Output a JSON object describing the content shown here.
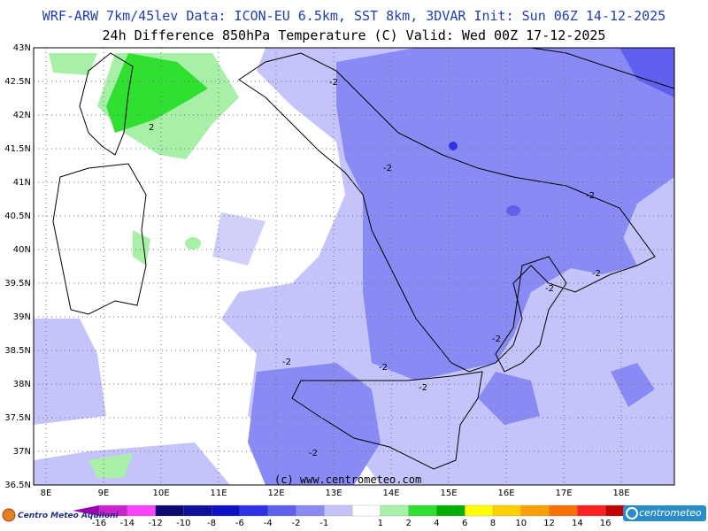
{
  "header": {
    "line1": "WRF-ARW 7km/45lev  Data: ICON-EU 6.5km, SST 8km, 3DVAR  Init: Sun 06Z 14-12-2025",
    "line2": "24h Difference 850hPa Temperature (C)  Valid: Wed 00Z 17-12-2025"
  },
  "map": {
    "lat_labels": [
      "43N",
      "42.5N",
      "42N",
      "41.5N",
      "41N",
      "40.5N",
      "40N",
      "39.5N",
      "39N",
      "38.5N",
      "38N",
      "37.5N",
      "37N",
      "36.5N"
    ],
    "lon_labels": [
      "8E",
      "9E",
      "10E",
      "11E",
      "12E",
      "13E",
      "14E",
      "15E",
      "16E",
      "17E",
      "18E"
    ],
    "contour_labels": [
      "-2",
      "2",
      "-2",
      "-2",
      "-2",
      "-2",
      "-2",
      "-2",
      "-2",
      "-2",
      "-2",
      "-2"
    ],
    "copyright": "(c) www.centrometeo.com",
    "colors": {
      "land_outline": "#000000",
      "grid": "#707070",
      "region_border": "#8a8a8a"
    }
  },
  "legend": {
    "labels": [
      "-16",
      "-14",
      "-12",
      "-10",
      "-8",
      "-6",
      "-4",
      "-2",
      "-1",
      "1",
      "2",
      "4",
      "6",
      "8",
      "10",
      "12",
      "14",
      "16"
    ],
    "colors": [
      "#9a00b0",
      "#cc22cc",
      "#ff44ff",
      "#0a0a70",
      "#10109a",
      "#1010c8",
      "#3030e8",
      "#6060f0",
      "#8a8af4",
      "#c4c4fa",
      "#ffffff",
      "#a8f0a8",
      "#30e030",
      "#00b000",
      "#ffff00",
      "#ffd000",
      "#ffa000",
      "#ff7000",
      "#ff2020",
      "#c00000",
      "#900000"
    ],
    "logo_left": "Centro Meteo Aquiloni",
    "logo_right": "centrometeo"
  }
}
